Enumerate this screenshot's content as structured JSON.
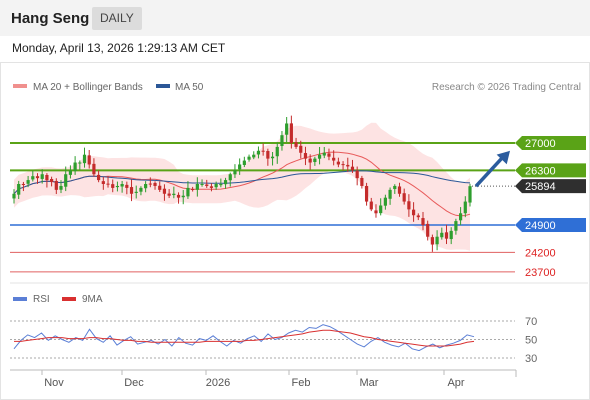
{
  "header": {
    "title": "Hang Seng",
    "period": "DAILY",
    "datetime": "Monday, April 13, 2026 1:29:13 AM CET"
  },
  "legend": {
    "ma20": "MA 20 + Bollinger Bands",
    "ma50": "MA 50",
    "credit": "Research © 2026 Trading Central",
    "rsi": "RSI",
    "rsi_ma": "9MA"
  },
  "colors": {
    "candle_up": "#2e9e2e",
    "candle_down": "#c42b2b",
    "ma20": "#e85a5a",
    "ma50": "#2b5797",
    "bands": "#fde3e3",
    "resistance": "#5aa317",
    "support": "#2f6fd6",
    "extra_support": "#e06060",
    "current": "#2f2f2f",
    "rsi": "#5b7fd6",
    "rsi_ma": "#d93030"
  },
  "chart_data": [
    {
      "type": "candlestick",
      "title": "Hang Seng",
      "x_ticks": [
        "Nov",
        "Dec",
        "2026",
        "Feb",
        "Mar",
        "Apr"
      ],
      "levels": [
        {
          "name": "resistance",
          "value": 27000,
          "label": "27000"
        },
        {
          "name": "resistance",
          "value": 26300,
          "label": "26300"
        },
        {
          "name": "current",
          "value": 25894,
          "label": "25894"
        },
        {
          "name": "support",
          "value": 24900,
          "label": "24900"
        },
        {
          "name": "support",
          "value": 24200,
          "label": "24200"
        },
        {
          "name": "support",
          "value": 23700,
          "label": "23700"
        }
      ],
      "price_path": [
        25700,
        25950,
        25950,
        26050,
        26150,
        26100,
        26200,
        26050,
        26000,
        25800,
        25900,
        26200,
        26300,
        26500,
        26500,
        26700,
        26450,
        26200,
        26050,
        25950,
        25950,
        25850,
        25900,
        25950,
        25850,
        25700,
        25750,
        25850,
        25950,
        25950,
        25900,
        25800,
        25700,
        25650,
        25700,
        25600,
        25650,
        25850,
        25800,
        25950,
        25950,
        25900,
        25850,
        25950,
        25950,
        26050,
        26200,
        26300,
        26450,
        26550,
        26650,
        26700,
        26800,
        26800,
        26600,
        26650,
        26900,
        27200,
        27500,
        27000,
        26900,
        26750,
        26600,
        26500,
        26600,
        26700,
        26750,
        26650,
        26550,
        26450,
        26450,
        26400,
        26300,
        26100,
        25900,
        25500,
        25300,
        25200,
        25400,
        25600,
        25800,
        25900,
        25700,
        25500,
        25300,
        25150,
        25100,
        24900,
        24600,
        24400,
        24600,
        24700,
        24550,
        24750,
        25000,
        25200,
        25500,
        25894
      ],
      "forecast": {
        "from": 25894,
        "to": 26800,
        "label": "27000"
      }
    },
    {
      "type": "line",
      "title": "RSI",
      "y_ticks": [
        70,
        50,
        30
      ],
      "ylim": [
        20,
        80
      ],
      "series": [
        {
          "name": "RSI",
          "values": [
            40,
            49,
            55,
            52,
            57,
            49,
            54,
            50,
            47,
            52,
            49,
            61,
            51,
            47,
            54,
            44,
            49,
            53,
            45,
            47,
            49,
            45,
            50,
            43,
            52,
            46,
            44,
            51,
            49,
            54,
            48,
            43,
            49,
            46,
            51,
            54,
            48,
            56,
            50,
            52,
            57,
            60,
            58,
            63,
            62,
            66,
            64,
            60,
            55,
            50,
            45,
            42,
            48,
            52,
            47,
            44,
            42,
            46,
            40,
            38,
            42,
            45,
            41,
            44,
            46,
            49,
            55,
            53
          ]
        },
        {
          "name": "9MA",
          "values": [
            48,
            48,
            49,
            50,
            51,
            52,
            52,
            52,
            51,
            51,
            51,
            52,
            52,
            51,
            51,
            50,
            49,
            49,
            48,
            48,
            47,
            47,
            47,
            47,
            47,
            47,
            47,
            47,
            48,
            48,
            48,
            48,
            48,
            48,
            49,
            49,
            50,
            51,
            52,
            53,
            54,
            55,
            56,
            58,
            59,
            60,
            60,
            59,
            58,
            57,
            55,
            53,
            52,
            50,
            49,
            48,
            47,
            46,
            45,
            44,
            43,
            43,
            43,
            43,
            44,
            45,
            47,
            48
          ]
        }
      ]
    }
  ]
}
